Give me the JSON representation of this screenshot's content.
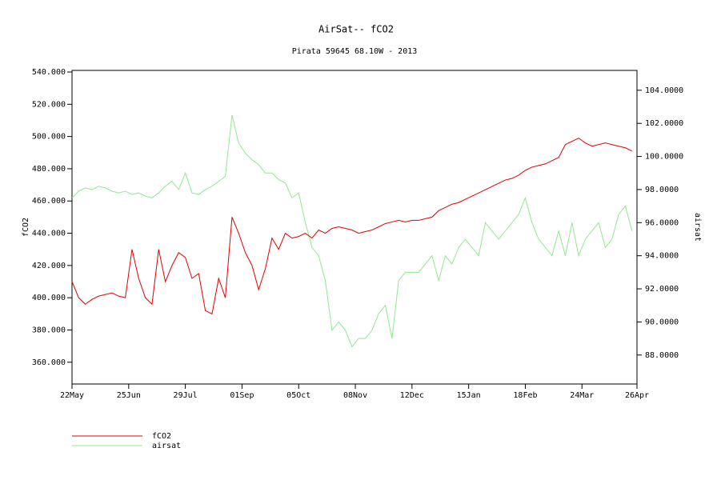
{
  "chart_data": {
    "type": "line",
    "title": "AirSat-- fCO2",
    "subtitle": "Pirata 59645 68.10W - 2013",
    "ylabel": "fCO2",
    "y2label": "airsat",
    "x": [
      0,
      4,
      8,
      12,
      16,
      20,
      24,
      28,
      32,
      36,
      40,
      44,
      48,
      52,
      56,
      60,
      64,
      68,
      72,
      76,
      80,
      84,
      88,
      92,
      96,
      100,
      104,
      108,
      112,
      116,
      120,
      124,
      128,
      132,
      136,
      140,
      144,
      148,
      152,
      156,
      160,
      164,
      168,
      172,
      176,
      180,
      184,
      188,
      192,
      196,
      200,
      204,
      208,
      212,
      216,
      220,
      224,
      228,
      232,
      236,
      240,
      244,
      248,
      252,
      256,
      260,
      264,
      268,
      272,
      276,
      280,
      284,
      288,
      292,
      296,
      300,
      304,
      308,
      312,
      316,
      320,
      324,
      328,
      332,
      336
    ],
    "xlim": [
      0,
      339
    ],
    "xticks": [
      {
        "value": 0,
        "label": "22May"
      },
      {
        "value": 34,
        "label": "25Jun"
      },
      {
        "value": 68,
        "label": "29Jul"
      },
      {
        "value": 102,
        "label": "01Sep"
      },
      {
        "value": 136,
        "label": "05Oct"
      },
      {
        "value": 170,
        "label": "08Nov"
      },
      {
        "value": 204,
        "label": "12Dec"
      },
      {
        "value": 238,
        "label": "15Jan"
      },
      {
        "value": 272,
        "label": "18Feb"
      },
      {
        "value": 306,
        "label": "24Mar"
      },
      {
        "value": 339,
        "label": "26Apr"
      }
    ],
    "ylim": [
      346.5,
      541
    ],
    "yticks": [
      {
        "value": 360,
        "label": "360.000"
      },
      {
        "value": 380,
        "label": "380.000"
      },
      {
        "value": 400,
        "label": "400.000"
      },
      {
        "value": 420,
        "label": "420.000"
      },
      {
        "value": 440,
        "label": "440.000"
      },
      {
        "value": 460,
        "label": "460.000"
      },
      {
        "value": 480,
        "label": "480.000"
      },
      {
        "value": 500,
        "label": "500.000"
      },
      {
        "value": 520,
        "label": "520.000"
      },
      {
        "value": 540,
        "label": "540.000"
      }
    ],
    "y2lim": [
      86.25,
      105.2
    ],
    "y2ticks": [
      {
        "value": 88,
        "label": "88.0000"
      },
      {
        "value": 90,
        "label": "90.0000"
      },
      {
        "value": 92,
        "label": "92.0000"
      },
      {
        "value": 94,
        "label": "94.0000"
      },
      {
        "value": 96,
        "label": "96.0000"
      },
      {
        "value": 98,
        "label": "98.0000"
      },
      {
        "value": 100,
        "label": "100.0000"
      },
      {
        "value": 102,
        "label": "102.0000"
      },
      {
        "value": 104,
        "label": "104.0000"
      }
    ],
    "series": [
      {
        "name": "fCO2",
        "color": "#e00000",
        "values": [
          410,
          400,
          396,
          399,
          401,
          402,
          403,
          401,
          400,
          430,
          412,
          400,
          396,
          430,
          410,
          420,
          428,
          425,
          412,
          415,
          392,
          390,
          412,
          400,
          450,
          440,
          428,
          420,
          405,
          418,
          437,
          430,
          440,
          437,
          438,
          440,
          437,
          442,
          440,
          443,
          444,
          443,
          442,
          440,
          441,
          442,
          444,
          446,
          447,
          448,
          447,
          448,
          448,
          449,
          450,
          454,
          456,
          458,
          459,
          461,
          463,
          465,
          467,
          469,
          471,
          473,
          474,
          476,
          479,
          481,
          482,
          483,
          485,
          487,
          495,
          497,
          499,
          496,
          494,
          495,
          496,
          495,
          494,
          493,
          491
        ]
      },
      {
        "name": "airsat",
        "color": "#90e890",
        "axis": "y2",
        "values": [
          97.5,
          97.9,
          98.1,
          98.0,
          98.2,
          98.1,
          97.9,
          97.8,
          97.9,
          97.7,
          97.8,
          97.6,
          97.5,
          97.8,
          98.2,
          98.5,
          98.0,
          99.0,
          97.8,
          97.7,
          98.0,
          98.2,
          98.5,
          98.8,
          102.5,
          100.8,
          100.2,
          99.8,
          99.5,
          99.0,
          99.0,
          98.6,
          98.4,
          97.5,
          97.8,
          96.0,
          94.5,
          94.0,
          92.5,
          89.5,
          90.0,
          89.5,
          88.5,
          89.0,
          89.0,
          89.5,
          90.5,
          91.0,
          89.0,
          92.5,
          93.0,
          93.0,
          93.0,
          93.5,
          94.0,
          92.5,
          94.0,
          93.5,
          94.5,
          95.0,
          94.5,
          94.0,
          96.0,
          95.5,
          95.0,
          95.5,
          96.0,
          96.5,
          97.5,
          96.0,
          95.0,
          94.5,
          94.0,
          95.5,
          94.0,
          96.0,
          94.0,
          95.0,
          95.5,
          96.0,
          94.5,
          95.0,
          96.5,
          97.0,
          95.5
        ]
      }
    ]
  }
}
